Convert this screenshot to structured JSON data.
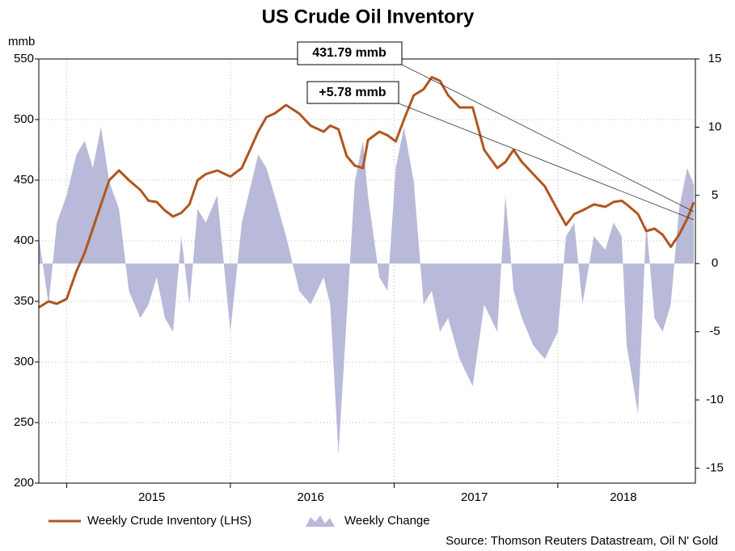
{
  "chart_data": {
    "type": "line-area",
    "title": "US Crude Oil Inventory",
    "y_label": "mmb",
    "source": "Source: Thomson Reuters Datastream, Oil N' Gold",
    "annotations": [
      "431.79 mmb",
      "+5.78 mmb"
    ],
    "x": [
      2014.83,
      2014.89,
      2014.94,
      2015.0,
      2015.06,
      2015.11,
      2015.16,
      2015.21,
      2015.26,
      2015.32,
      2015.38,
      2015.45,
      2015.5,
      2015.55,
      2015.6,
      2015.65,
      2015.7,
      2015.75,
      2015.8,
      2015.85,
      2015.92,
      2016.0,
      2016.07,
      2016.17,
      2016.22,
      2016.27,
      2016.34,
      2016.42,
      2016.49,
      2016.57,
      2016.61,
      2016.66,
      2016.71,
      2016.76,
      2016.81,
      2016.84,
      2016.91,
      2016.96,
      2017.01,
      2017.06,
      2017.12,
      2017.18,
      2017.23,
      2017.28,
      2017.33,
      2017.4,
      2017.48,
      2017.55,
      2017.63,
      2017.68,
      2017.73,
      2017.78,
      2017.85,
      2017.92,
      2018.0,
      2018.05,
      2018.1,
      2018.15,
      2018.22,
      2018.29,
      2018.34,
      2018.39,
      2018.42,
      2018.49,
      2018.54,
      2018.59,
      2018.64,
      2018.69,
      2018.74,
      2018.79,
      2018.83
    ],
    "series": [
      {
        "name": "Weekly Change",
        "color": "#b9b9d9",
        "axis": "y2",
        "kind": "area",
        "values": [
          2,
          -3,
          3,
          5,
          8,
          9,
          7,
          10,
          6,
          4,
          -2,
          -4,
          -3,
          -1,
          -4,
          -5,
          2,
          -3,
          4,
          3,
          5,
          -5,
          3,
          8,
          7,
          5,
          2,
          -2,
          -3,
          -1,
          -3,
          -14,
          -4,
          6,
          9,
          5,
          -1,
          -2,
          7,
          10,
          6,
          -3,
          -2,
          -5,
          -4,
          -7,
          -9,
          -3,
          -5,
          5,
          -2,
          -4,
          -6,
          -7,
          -5,
          2,
          3,
          -3,
          2,
          1,
          3,
          2,
          -6,
          -11,
          3,
          -4,
          -5,
          -3,
          4,
          7,
          5.78
        ]
      },
      {
        "name": "Weekly Crude Inventory (LHS)",
        "color": "#b0561f",
        "axis": "y",
        "kind": "line",
        "values": [
          345,
          350,
          348,
          352,
          375,
          390,
          410,
          430,
          450,
          458,
          450,
          442,
          433,
          432,
          425,
          420,
          423,
          430,
          450,
          455,
          458,
          453,
          460,
          490,
          502,
          505,
          512,
          505,
          495,
          490,
          495,
          492,
          470,
          462,
          460,
          483,
          490,
          487,
          482,
          500,
          520,
          525,
          535,
          532,
          520,
          510,
          510,
          475,
          460,
          465,
          475,
          465,
          455,
          445,
          425,
          413,
          422,
          425,
          430,
          428,
          432,
          433,
          430,
          422,
          408,
          410,
          405,
          395,
          405,
          418,
          431.79
        ]
      }
    ],
    "xlim": [
      2014.83,
      2018.84
    ],
    "xticks": [
      {
        "value": 2015.52,
        "label": "2015"
      },
      {
        "value": 2016.49,
        "label": "2016"
      },
      {
        "value": 2017.49,
        "label": "2017"
      },
      {
        "value": 2018.4,
        "label": "2018"
      }
    ],
    "xgrid": [
      2015,
      2016,
      2017,
      2018
    ],
    "ylim": [
      200,
      550
    ],
    "yticks": [
      200,
      250,
      300,
      350,
      400,
      450,
      500,
      550
    ],
    "y2lim": [
      -16.1,
      15
    ],
    "y2ticks": [
      -15,
      -10,
      -5,
      0,
      5,
      10,
      15
    ],
    "grid": true
  }
}
